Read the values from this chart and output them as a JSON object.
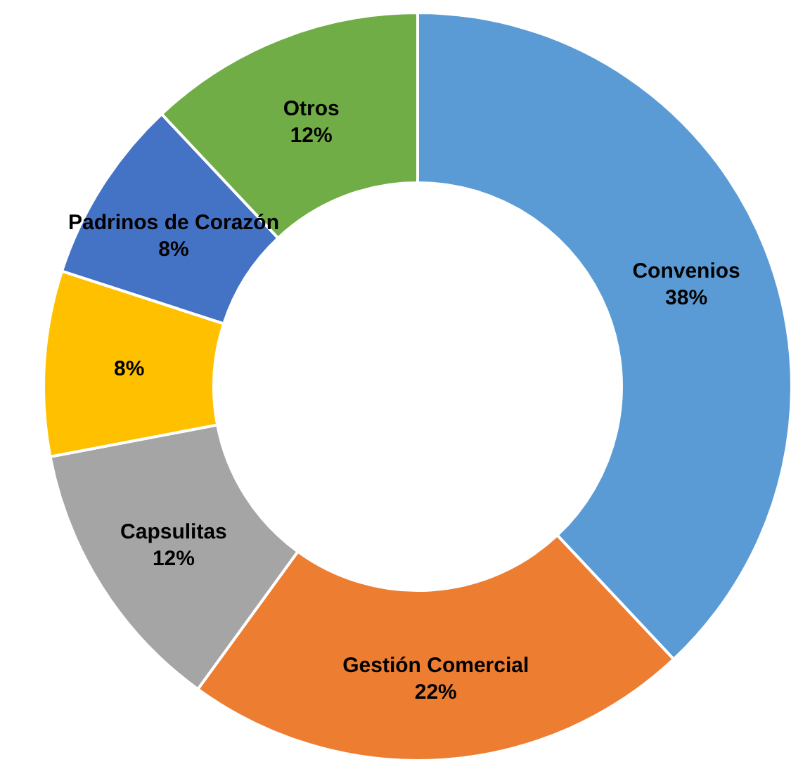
{
  "chart_data": {
    "type": "donut",
    "categories": [
      "Convenios",
      "Gestión Comercial",
      "Capsulitas",
      null,
      "Padrinos de Corazón",
      "Otros"
    ],
    "values": [
      38,
      22,
      12,
      8,
      8,
      12
    ],
    "value_labels": [
      "38%",
      "22%",
      "12%",
      "8%",
      "8%",
      "12%"
    ],
    "colors": [
      "#5b9bd5",
      "#ed7d31",
      "#a5a5a5",
      "#ffc000",
      "#4472c4",
      "#70ad47"
    ],
    "legend": false
  }
}
